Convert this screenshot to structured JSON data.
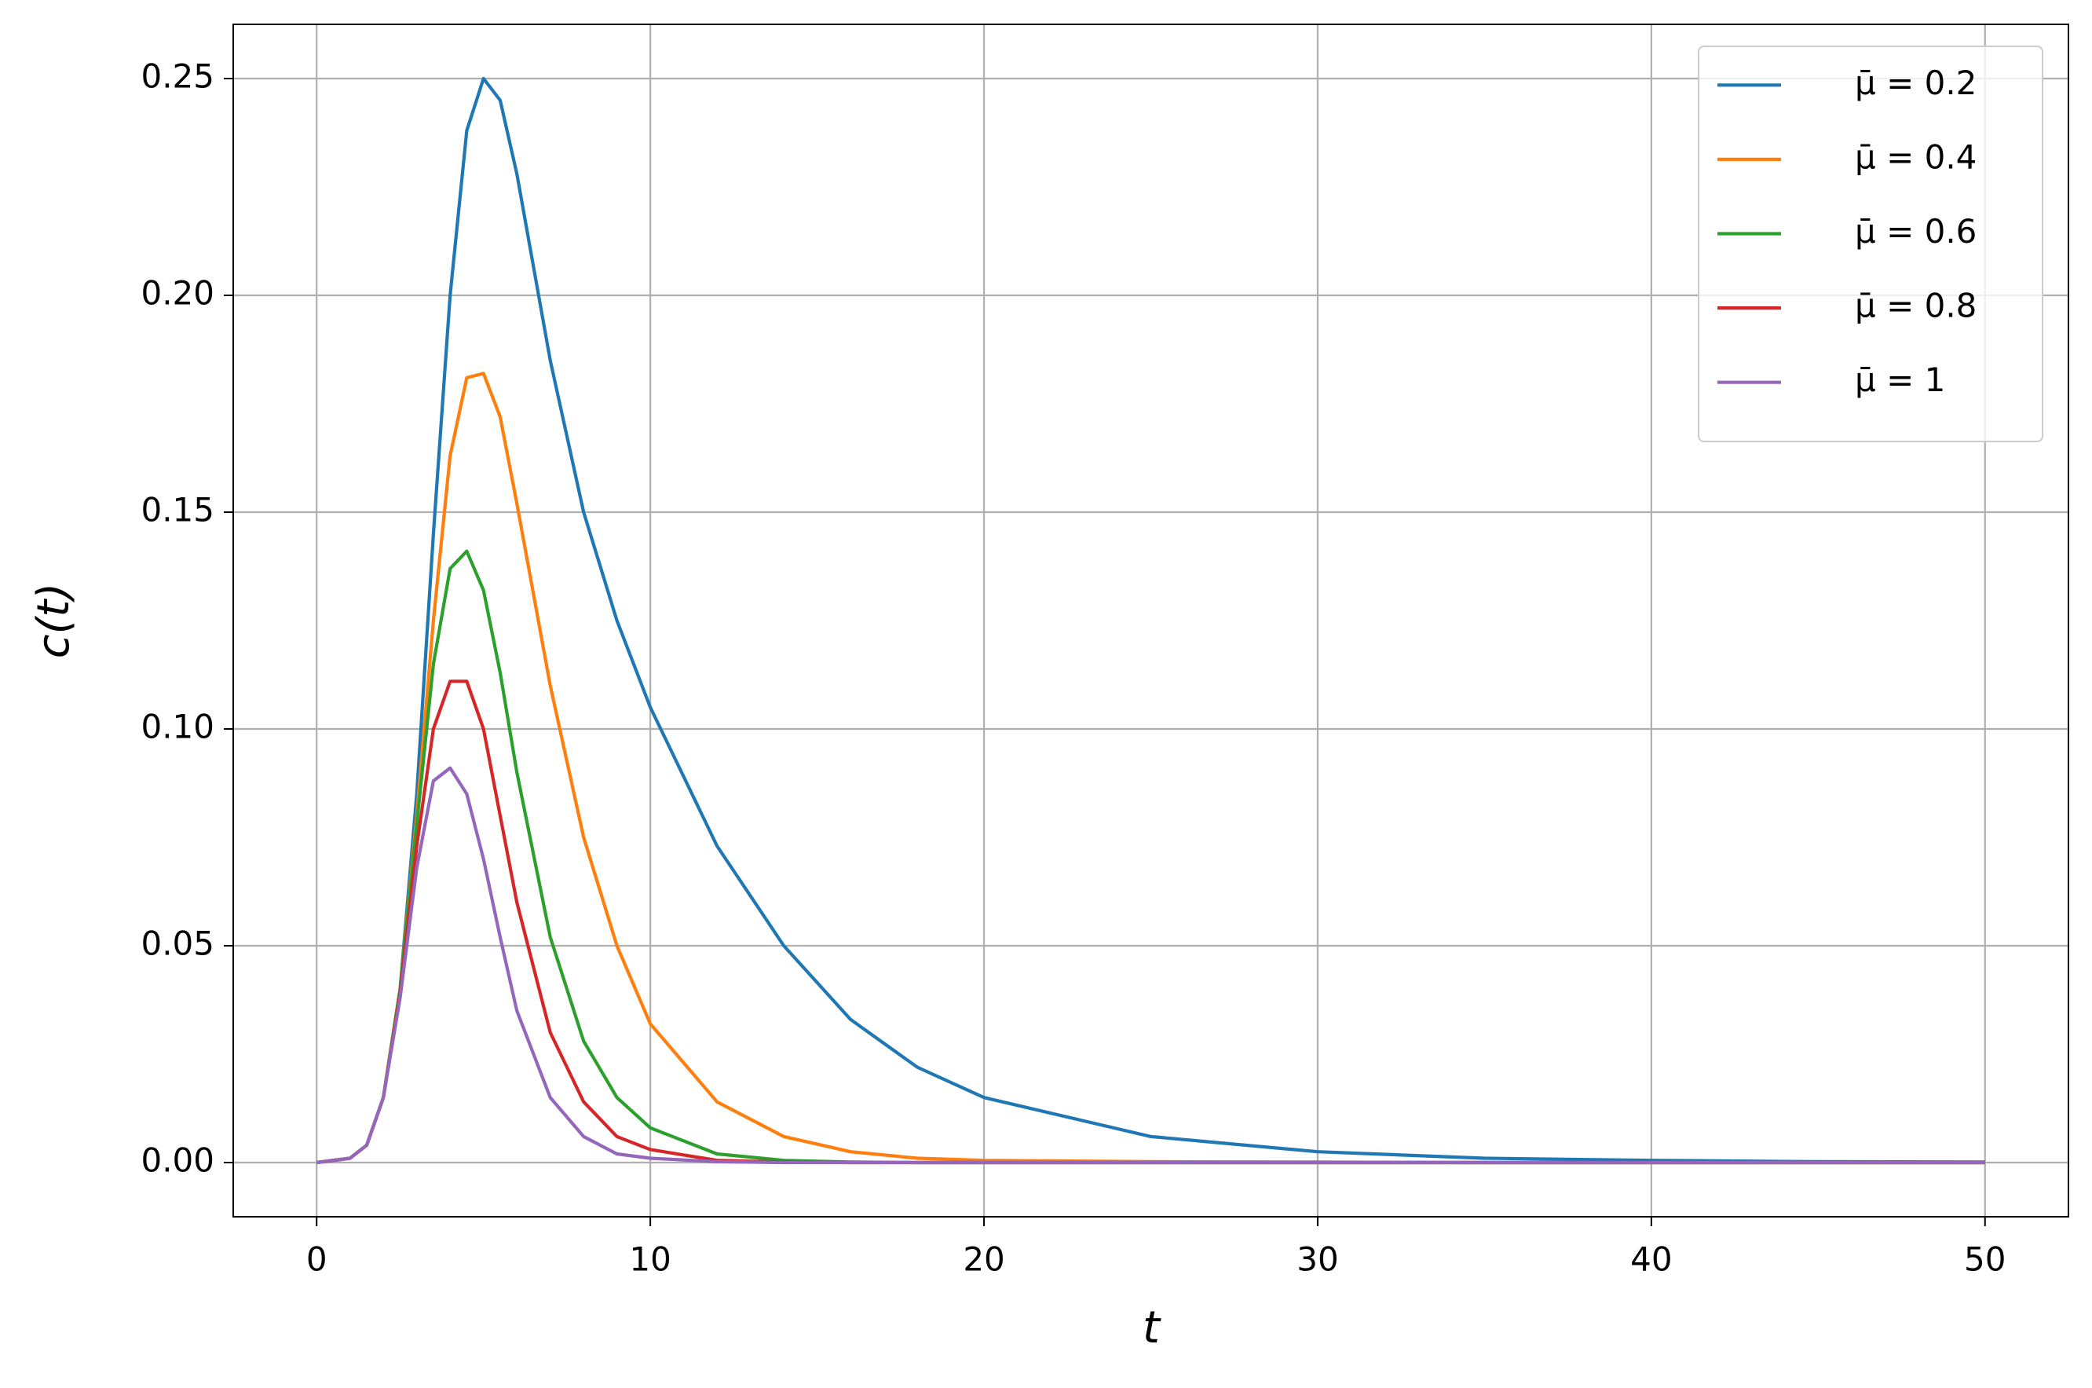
{
  "chart_data": {
    "type": "line",
    "xlabel": "t",
    "ylabel": "c(t)",
    "x": [
      0,
      1,
      1.5,
      2,
      2.5,
      3,
      3.5,
      4,
      4.5,
      5,
      5.5,
      6,
      7,
      8,
      9,
      10,
      12,
      14,
      16,
      18,
      20,
      25,
      30,
      35,
      40,
      45,
      50
    ],
    "series": [
      {
        "name": "μ̄ = 0.2",
        "color": "#1f77b4",
        "values": [
          0,
          0.001,
          0.004,
          0.015,
          0.04,
          0.085,
          0.145,
          0.2,
          0.238,
          0.25,
          0.245,
          0.228,
          0.185,
          0.15,
          0.125,
          0.105,
          0.073,
          0.05,
          0.033,
          0.022,
          0.015,
          0.006,
          0.0025,
          0.001,
          0.0005,
          0.0002,
          0.0001
        ]
      },
      {
        "name": "μ̄ = 0.4",
        "color": "#ff7f0e",
        "values": [
          0,
          0.001,
          0.004,
          0.015,
          0.04,
          0.08,
          0.125,
          0.163,
          0.181,
          0.182,
          0.172,
          0.152,
          0.11,
          0.075,
          0.05,
          0.032,
          0.014,
          0.006,
          0.0025,
          0.001,
          0.0005,
          0.0002,
          0.0001,
          0,
          0,
          0,
          0
        ]
      },
      {
        "name": "μ̄ = 0.6",
        "color": "#2ca02c",
        "values": [
          0,
          0.001,
          0.004,
          0.015,
          0.04,
          0.078,
          0.115,
          0.137,
          0.141,
          0.132,
          0.113,
          0.09,
          0.052,
          0.028,
          0.015,
          0.008,
          0.002,
          0.0005,
          0.0001,
          0,
          0,
          0,
          0,
          0,
          0,
          0,
          0
        ]
      },
      {
        "name": "μ̄ = 0.8",
        "color": "#d62728",
        "values": [
          0,
          0.001,
          0.004,
          0.015,
          0.039,
          0.073,
          0.1,
          0.111,
          0.111,
          0.1,
          0.08,
          0.06,
          0.03,
          0.014,
          0.006,
          0.003,
          0.0005,
          0.0001,
          0,
          0,
          0,
          0,
          0,
          0,
          0,
          0,
          0
        ]
      },
      {
        "name": "μ̄ = 1",
        "color": "#9467bd",
        "values": [
          0,
          0.001,
          0.004,
          0.015,
          0.038,
          0.068,
          0.088,
          0.091,
          0.085,
          0.07,
          0.052,
          0.035,
          0.015,
          0.006,
          0.002,
          0.001,
          0.0002,
          0,
          0,
          0,
          0,
          0,
          0,
          0,
          0,
          0,
          0
        ]
      }
    ],
    "xlim": [
      -2.5,
      52.5
    ],
    "ylim": [
      -0.0125,
      0.2625
    ],
    "xticks": [
      0,
      10,
      20,
      30,
      40,
      50
    ],
    "yticks": [
      {
        "value": 0,
        "label": "0.00"
      },
      0.05,
      {
        "value": 0.1,
        "label": "0.10"
      },
      0.15,
      {
        "value": 0.2,
        "label": "0.20"
      },
      0.25
    ],
    "grid": true,
    "legend": "upper right"
  }
}
